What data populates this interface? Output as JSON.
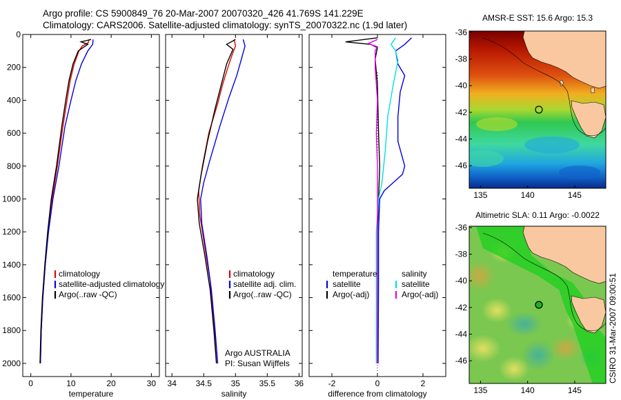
{
  "header": {
    "line1": "Argo profile: CS 5900849_76 20-Mar-2007 20070320_426 41.769S 141.229E",
    "line2": "Climatology: CARS2006. Satellite-adjusted climatology: synTS_20070322.nc (1.9d later)"
  },
  "side_label": "CSIRO 31-Mar-2007 09:00:51",
  "colors": {
    "climatology": "#e00000",
    "satellite": "#0000e0",
    "argo": "#000000",
    "satellite_diff_salinity": "#00e0e0",
    "argo_diff_salinity": "#e000e0",
    "land": "#f9c8a0"
  },
  "chart_data": [
    {
      "type": "line",
      "xlabel": "temperature",
      "ylabel": "",
      "xlim": [
        -2,
        32
      ],
      "ylim": [
        2080,
        0
      ],
      "xticks": [
        "0",
        "10",
        "20",
        "30"
      ],
      "yticks": [
        "0",
        "200",
        "400",
        "600",
        "800",
        "1000",
        "1200",
        "1400",
        "1600",
        "1800",
        "2000"
      ],
      "legend": [
        "climatology",
        "satellite-adjusted climatology",
        "Argo(..raw -QC)"
      ],
      "legend_placement": "center-right",
      "series": [
        {
          "name": "climatology",
          "color": "#e00000",
          "points": [
            [
              14.5,
              30
            ],
            [
              14.3,
              50
            ],
            [
              12.8,
              70
            ],
            [
              12,
              100
            ],
            [
              10.8,
              180
            ],
            [
              9.8,
              280
            ],
            [
              9,
              400
            ],
            [
              8,
              560
            ],
            [
              6.6,
              800
            ],
            [
              5.3,
              1000
            ],
            [
              4.3,
              1200
            ],
            [
              3.6,
              1400
            ],
            [
              3,
              1600
            ],
            [
              2.6,
              1800
            ],
            [
              2.4,
              2000
            ]
          ]
        },
        {
          "name": "satellite-adjusted climatology",
          "color": "#0000e0",
          "points": [
            [
              15.5,
              30
            ],
            [
              15.4,
              60
            ],
            [
              14.2,
              100
            ],
            [
              12.6,
              180
            ],
            [
              11.2,
              280
            ],
            [
              10,
              400
            ],
            [
              8.5,
              560
            ],
            [
              7,
              800
            ],
            [
              5.5,
              1000
            ],
            [
              4.4,
              1200
            ],
            [
              3.6,
              1400
            ],
            [
              3,
              1600
            ],
            [
              2.6,
              1800
            ],
            [
              2.4,
              2000
            ]
          ]
        },
        {
          "name": "Argo(..raw -QC)",
          "color": "#000000",
          "points": [
            [
              15,
              30
            ],
            [
              12.5,
              45
            ],
            [
              14.2,
              60
            ],
            [
              11.8,
              100
            ],
            [
              10.5,
              180
            ],
            [
              9.5,
              280
            ],
            [
              8.7,
              400
            ],
            [
              7.7,
              560
            ],
            [
              6.4,
              800
            ],
            [
              5.1,
              1000
            ],
            [
              4.2,
              1200
            ],
            [
              3.5,
              1400
            ],
            [
              2.9,
              1600
            ],
            [
              2.5,
              1800
            ],
            [
              2.3,
              2000
            ]
          ]
        }
      ]
    },
    {
      "type": "line",
      "xlabel": "salinity",
      "ylabel": "",
      "xlim": [
        33.9,
        36.05
      ],
      "ylim": [
        2080,
        0
      ],
      "xticks": [
        "34",
        "34.5",
        "35",
        "35.5",
        "36"
      ],
      "legend": [
        "climatology",
        "satellite adj. clim.",
        "Argo(..raw -QC)"
      ],
      "legend_placement": "center-right",
      "annotations": [
        "Argo AUSTRALIA",
        "PI: Susan Wijffels"
      ],
      "series": [
        {
          "name": "climatology",
          "color": "#e00000",
          "points": [
            [
              34.98,
              30
            ],
            [
              35,
              70
            ],
            [
              34.95,
              120
            ],
            [
              34.88,
              200
            ],
            [
              34.8,
              300
            ],
            [
              34.72,
              420
            ],
            [
              34.58,
              600
            ],
            [
              34.48,
              800
            ],
            [
              34.42,
              950
            ],
            [
              34.44,
              1100
            ],
            [
              34.52,
              1300
            ],
            [
              34.6,
              1500
            ],
            [
              34.65,
              1700
            ],
            [
              34.7,
              2000
            ]
          ]
        },
        {
          "name": "satellite adj. clim.",
          "color": "#0000e0",
          "points": [
            [
              35.12,
              30
            ],
            [
              35.15,
              70
            ],
            [
              35.1,
              140
            ],
            [
              35.02,
              250
            ],
            [
              34.9,
              380
            ],
            [
              34.76,
              550
            ],
            [
              34.6,
              760
            ],
            [
              34.5,
              900
            ],
            [
              34.45,
              1000
            ],
            [
              34.47,
              1150
            ],
            [
              34.55,
              1350
            ],
            [
              34.62,
              1550
            ],
            [
              34.68,
              1800
            ],
            [
              34.72,
              2000
            ]
          ]
        },
        {
          "name": "Argo(..raw -QC)",
          "color": "#000000",
          "points": [
            [
              35,
              30
            ],
            [
              34.86,
              60
            ],
            [
              34.96,
              90
            ],
            [
              34.86,
              180
            ],
            [
              34.78,
              300
            ],
            [
              34.68,
              450
            ],
            [
              34.56,
              650
            ],
            [
              34.46,
              850
            ],
            [
              34.4,
              1000
            ],
            [
              34.43,
              1150
            ],
            [
              34.52,
              1350
            ],
            [
              34.6,
              1550
            ],
            [
              34.66,
              1800
            ],
            [
              34.7,
              2000
            ]
          ]
        }
      ]
    },
    {
      "type": "line",
      "xlabel": "difference from climatology",
      "ylabel": "",
      "xlim": [
        -3,
        3
      ],
      "ylim": [
        2080,
        0
      ],
      "xticks": [
        "-2",
        "0",
        "2"
      ],
      "legend": [
        "temperature",
        "satellite",
        "Argo(-adj)",
        "salinity",
        "satellite",
        "Argo(-adj)"
      ],
      "legend_placement": "center",
      "series": [
        {
          "name": "satellite",
          "group": "temperature",
          "color": "#0000e0",
          "points": [
            [
              1.5,
              20
            ],
            [
              1.2,
              60
            ],
            [
              0.8,
              100
            ],
            [
              0.9,
              180
            ],
            [
              1.2,
              250
            ],
            [
              1,
              350
            ],
            [
              0.9,
              500
            ],
            [
              0.9,
              650
            ],
            [
              1.2,
              800
            ],
            [
              1.1,
              850
            ],
            [
              0.7,
              900
            ],
            [
              0.3,
              950
            ],
            [
              0.1,
              1000
            ],
            [
              0.05,
              1200
            ],
            [
              0.05,
              1500
            ],
            [
              0.03,
              2000
            ]
          ]
        },
        {
          "name": "Argo(-adj)",
          "group": "temperature",
          "color": "#000000",
          "points": [
            [
              0,
              20
            ],
            [
              -1.4,
              45
            ],
            [
              -0.3,
              60
            ],
            [
              0,
              80
            ],
            [
              -0.1,
              150
            ],
            [
              0,
              300
            ],
            [
              0.05,
              600
            ],
            [
              0.1,
              800
            ],
            [
              0.05,
              1000
            ],
            [
              0,
              1200
            ],
            [
              0,
              1600
            ],
            [
              0,
              2000
            ]
          ]
        },
        {
          "name": "satellite",
          "group": "salinity",
          "color": "#00e0e0",
          "points": [
            [
              0.8,
              20
            ],
            [
              0.6,
              60
            ],
            [
              0.8,
              100
            ],
            [
              0.9,
              160
            ],
            [
              0.7,
              300
            ],
            [
              0.45,
              500
            ],
            [
              0.35,
              700
            ],
            [
              0.2,
              900
            ],
            [
              0.05,
              1000
            ],
            [
              -0.05,
              1200
            ],
            [
              -0.05,
              1500
            ],
            [
              -0.05,
              2000
            ]
          ]
        },
        {
          "name": "Argo(-adj)",
          "group": "salinity",
          "color": "#e000e0",
          "points": [
            [
              0,
              30
            ],
            [
              -0.4,
              55
            ],
            [
              0,
              75
            ],
            [
              -0.1,
              100
            ],
            [
              -0.1,
              200
            ],
            [
              0,
              400
            ],
            [
              -0.05,
              600
            ],
            [
              0,
              800
            ],
            [
              0,
              1000
            ],
            [
              0,
              1300
            ],
            [
              0,
              2000
            ]
          ]
        }
      ]
    },
    {
      "type": "heatmap",
      "title": "AMSR-E SST: 15.6 Argo: 15.3",
      "xticks": [
        "135",
        "140",
        "145"
      ],
      "yticks": [
        "-36",
        "-38",
        "-40",
        "-42",
        "-44",
        "-46"
      ],
      "xlim": [
        133.8,
        148.3
      ],
      "ylim": [
        -47.7,
        -35.9
      ],
      "marker": [
        141.2,
        -41.8
      ]
    },
    {
      "type": "heatmap",
      "title": "Altimetric SLA: 0.11 Argo: -0.0022",
      "xticks": [
        "135",
        "140",
        "145"
      ],
      "yticks": [
        "-36",
        "-38",
        "-40",
        "-42",
        "-44",
        "-46"
      ],
      "xlim": [
        133.8,
        148.3
      ],
      "ylim": [
        -47.7,
        -35.9
      ],
      "marker": [
        141.2,
        -41.8
      ]
    }
  ]
}
